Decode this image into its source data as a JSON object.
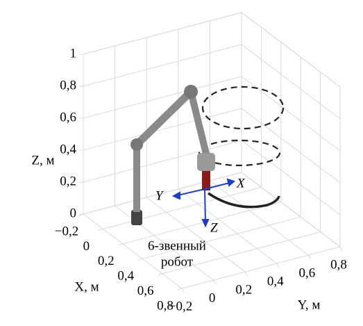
{
  "chart_data": {
    "type": "line3d",
    "xlabel": "X, м",
    "ylabel": "Y, м",
    "zlabel": "Z, м",
    "xlim": [
      -0.2,
      0.8
    ],
    "ylim": [
      -0.2,
      0.8
    ],
    "zlim": [
      0,
      1
    ],
    "xticks": [
      {
        "value": -0.2,
        "label": "−0,2"
      },
      0,
      {
        "value": 0.2,
        "label": "0,2"
      },
      {
        "value": 0.4,
        "label": "0,4"
      },
      {
        "value": 0.6,
        "label": "0,6"
      },
      {
        "value": 0.8,
        "label": "0,8"
      }
    ],
    "yticks": [
      {
        "value": -0.2,
        "label": "−0,2"
      },
      0,
      {
        "value": 0.2,
        "label": "0,2"
      },
      {
        "value": 0.4,
        "label": "0,4"
      },
      {
        "value": 0.6,
        "label": "0,6"
      },
      {
        "value": 0.8,
        "label": "0,8"
      }
    ],
    "zticks": [
      0,
      {
        "value": 0.2,
        "label": "0,2"
      },
      {
        "value": 0.4,
        "label": "0,4"
      },
      {
        "value": 0.6,
        "label": "0,6"
      },
      {
        "value": 0.8,
        "label": "0,8"
      },
      1
    ],
    "grid": true,
    "annotations": [
      "6-звенный",
      "робот"
    ],
    "frame_labels": [
      "X",
      "Y",
      "Z"
    ]
  }
}
